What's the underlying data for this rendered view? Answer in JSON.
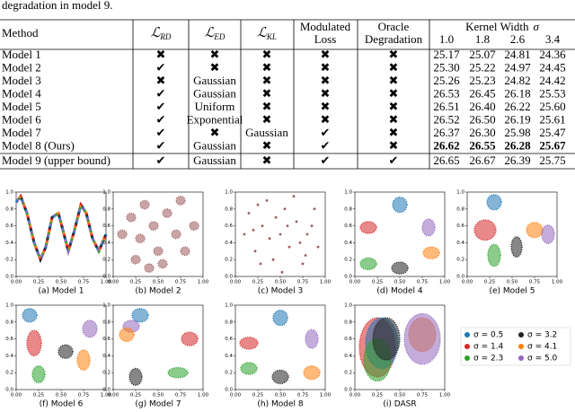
{
  "header_text": "degradation in model 9.",
  "table": {
    "columns": [
      [
        "Method"
      ],
      {
        "symbol": "ℒ",
        "sub": "RD"
      },
      {
        "symbol": "ℒ",
        "sub": "ED"
      },
      {
        "symbol": "ℒ",
        "sub": "KL"
      },
      [
        "Modulated",
        "Loss"
      ],
      [
        "Oracle",
        "Degradation"
      ]
    ],
    "kernel_header": {
      "text": "Kernel Width",
      "symbol": "σ"
    },
    "widths": [
      "1.0",
      "1.8",
      "2.6",
      "3.4"
    ],
    "bold_row": 7,
    "rows": [
      [
        "Model 1",
        "✖",
        "✖",
        "✖",
        "✖",
        "✖",
        "25.17",
        "25.07",
        "24.81",
        "24.36"
      ],
      [
        "Model 2",
        "✔",
        "✖",
        "✖",
        "✖",
        "✖",
        "25.30",
        "25.22",
        "24.97",
        "24.45"
      ],
      [
        "Model 3",
        "✖",
        "Gaussian",
        "✖",
        "✖",
        "✖",
        "25.26",
        "25.23",
        "24.82",
        "24.42"
      ],
      [
        "Model 4",
        "✔",
        "Gaussian",
        "✖",
        "✖",
        "✖",
        "26.53",
        "26.45",
        "26.18",
        "25.53"
      ],
      [
        "Model 5",
        "✔",
        "Uniform",
        "✖",
        "✖",
        "✖",
        "26.51",
        "26.40",
        "26.22",
        "25.60"
      ],
      [
        "Model 6",
        "✔",
        "Exponential",
        "✖",
        "✖",
        "✖",
        "26.52",
        "26.50",
        "26.19",
        "25.61"
      ],
      [
        "Model 7",
        "✔",
        "✖",
        "Gaussian",
        "✔",
        "✖",
        "26.37",
        "26.30",
        "25.98",
        "25.47"
      ],
      [
        "Model 8 (Ours)",
        "✔",
        "Gaussian",
        "✖",
        "✔",
        "✖",
        "26.62",
        "26.55",
        "26.28",
        "25.67"
      ],
      [
        "Model 9 (upper bound)",
        "✔",
        "Gaussian",
        "✖",
        "✔",
        "✔",
        "26.65",
        "26.67",
        "26.39",
        "25.75"
      ]
    ]
  },
  "chart_data": {
    "type": "scatter",
    "xlim": [
      0,
      1
    ],
    "ylim": [
      0,
      1
    ],
    "xticks": [
      {
        "value": 0,
        "label": "0.00"
      },
      {
        "value": 0.25,
        "label": "0.25"
      },
      {
        "value": 0.5,
        "label": "0.50"
      },
      {
        "value": 0.75,
        "label": "0.75"
      },
      {
        "value": 1,
        "label": "1.00"
      }
    ],
    "yticks": [
      {
        "value": 0,
        "label": "0.0"
      },
      {
        "value": 0.2,
        "label": "0.2"
      },
      {
        "value": 0.4,
        "label": "0.4"
      },
      {
        "value": 0.6,
        "label": "0.6"
      },
      {
        "value": 0.8,
        "label": "0.8"
      },
      {
        "value": 1,
        "label": "1.0"
      }
    ],
    "legend": [
      {
        "name": "σ = 0.5",
        "color": "#1f77b4"
      },
      {
        "name": "σ = 3.2",
        "color": "#222222"
      },
      {
        "name": "σ = 1.4",
        "color": "#d62728"
      },
      {
        "name": "σ = 4.1",
        "color": "#ff7f0e"
      },
      {
        "name": "σ = 2.3",
        "color": "#2ca02c"
      },
      {
        "name": "σ = 5.0",
        "color": "#9467bd"
      }
    ],
    "panels": [
      {
        "caption": "(a) Model 1",
        "curve": {
          "color": "#9467bd",
          "x": [
            0,
            0.05,
            0.12,
            0.2,
            0.27,
            0.33,
            0.4,
            0.47,
            0.52,
            0.58,
            0.65,
            0.72,
            0.78,
            0.85,
            0.92,
            1
          ],
          "y": [
            0.88,
            0.95,
            0.75,
            0.4,
            0.2,
            0.35,
            0.7,
            0.75,
            0.55,
            0.3,
            0.55,
            0.85,
            0.75,
            0.45,
            0.3,
            0.5
          ]
        }
      },
      {
        "caption": "(b) Model 2",
        "clusters": [
          {
            "color": "#9c5a5a",
            "x": 0.1,
            "y": 0.5,
            "rx": 0.05,
            "ry": 0.05
          },
          {
            "color": "#9c5a5a",
            "x": 0.2,
            "y": 0.7,
            "rx": 0.05,
            "ry": 0.05
          },
          {
            "color": "#9c5a5a",
            "x": 0.3,
            "y": 0.45,
            "rx": 0.05,
            "ry": 0.05
          },
          {
            "color": "#9c5a5a",
            "x": 0.35,
            "y": 0.85,
            "rx": 0.05,
            "ry": 0.05
          },
          {
            "color": "#9c5a5a",
            "x": 0.45,
            "y": 0.6,
            "rx": 0.05,
            "ry": 0.05
          },
          {
            "color": "#9c5a5a",
            "x": 0.5,
            "y": 0.3,
            "rx": 0.05,
            "ry": 0.05
          },
          {
            "color": "#9c5a5a",
            "x": 0.55,
            "y": 0.15,
            "rx": 0.05,
            "ry": 0.05
          },
          {
            "color": "#9c5a5a",
            "x": 0.6,
            "y": 0.75,
            "rx": 0.05,
            "ry": 0.05
          },
          {
            "color": "#9c5a5a",
            "x": 0.7,
            "y": 0.5,
            "rx": 0.05,
            "ry": 0.05
          },
          {
            "color": "#9c5a5a",
            "x": 0.75,
            "y": 0.9,
            "rx": 0.05,
            "ry": 0.05
          },
          {
            "color": "#9c5a5a",
            "x": 0.8,
            "y": 0.3,
            "rx": 0.05,
            "ry": 0.05
          },
          {
            "color": "#9c5a5a",
            "x": 0.9,
            "y": 0.6,
            "rx": 0.05,
            "ry": 0.05
          },
          {
            "color": "#9c5a5a",
            "x": 0.25,
            "y": 0.2,
            "rx": 0.05,
            "ry": 0.05
          },
          {
            "color": "#9c5a5a",
            "x": 0.4,
            "y": 0.1,
            "rx": 0.05,
            "ry": 0.05
          }
        ]
      },
      {
        "caption": "(c) Model 3",
        "points": {
          "color": "#9c5a5a",
          "x": [
            0.1,
            0.15,
            0.22,
            0.3,
            0.35,
            0.42,
            0.5,
            0.55,
            0.6,
            0.68,
            0.75,
            0.8,
            0.88,
            0.92,
            0.2,
            0.28,
            0.45,
            0.52,
            0.65,
            0.72,
            0.85,
            0.38,
            0.58,
            0.25,
            0.78
          ],
          "y": [
            0.5,
            0.75,
            0.3,
            0.6,
            0.9,
            0.2,
            0.5,
            0.8,
            0.35,
            0.65,
            0.15,
            0.5,
            0.8,
            0.35,
            0.55,
            0.15,
            0.7,
            0.05,
            0.95,
            0.4,
            0.6,
            0.45,
            0.6,
            0.85,
            0.25
          ]
        }
      },
      {
        "caption": "(d) Model 4",
        "clusters": [
          {
            "color": "#1f77b4",
            "x": 0.5,
            "y": 0.85,
            "rx": 0.08,
            "ry": 0.09
          },
          {
            "color": "#d62728",
            "x": 0.15,
            "y": 0.58,
            "rx": 0.09,
            "ry": 0.07
          },
          {
            "color": "#9467bd",
            "x": 0.82,
            "y": 0.58,
            "rx": 0.07,
            "ry": 0.1
          },
          {
            "color": "#2ca02c",
            "x": 0.15,
            "y": 0.15,
            "rx": 0.09,
            "ry": 0.07
          },
          {
            "color": "#222222",
            "x": 0.5,
            "y": 0.1,
            "rx": 0.09,
            "ry": 0.07
          },
          {
            "color": "#ff7f0e",
            "x": 0.85,
            "y": 0.28,
            "rx": 0.09,
            "ry": 0.07
          }
        ]
      },
      {
        "caption": "(e) Model 5",
        "clusters": [
          {
            "color": "#1f77b4",
            "x": 0.3,
            "y": 0.88,
            "rx": 0.08,
            "ry": 0.09
          },
          {
            "color": "#d62728",
            "x": 0.2,
            "y": 0.55,
            "rx": 0.12,
            "ry": 0.12
          },
          {
            "color": "#2ca02c",
            "x": 0.3,
            "y": 0.25,
            "rx": 0.07,
            "ry": 0.13
          },
          {
            "color": "#222222",
            "x": 0.55,
            "y": 0.35,
            "rx": 0.06,
            "ry": 0.12
          },
          {
            "color": "#ff7f0e",
            "x": 0.75,
            "y": 0.55,
            "rx": 0.09,
            "ry": 0.09
          },
          {
            "color": "#9467bd",
            "x": 0.9,
            "y": 0.5,
            "rx": 0.07,
            "ry": 0.11
          }
        ]
      },
      {
        "caption": "(f) Model 6",
        "clusters": [
          {
            "color": "#1f77b4",
            "x": 0.15,
            "y": 0.88,
            "rx": 0.08,
            "ry": 0.08
          },
          {
            "color": "#d62728",
            "x": 0.2,
            "y": 0.55,
            "rx": 0.08,
            "ry": 0.15
          },
          {
            "color": "#2ca02c",
            "x": 0.25,
            "y": 0.18,
            "rx": 0.07,
            "ry": 0.1
          },
          {
            "color": "#222222",
            "x": 0.55,
            "y": 0.45,
            "rx": 0.08,
            "ry": 0.08
          },
          {
            "color": "#ff7f0e",
            "x": 0.75,
            "y": 0.35,
            "rx": 0.07,
            "ry": 0.12
          },
          {
            "color": "#9467bd",
            "x": 0.82,
            "y": 0.72,
            "rx": 0.08,
            "ry": 0.1
          }
        ]
      },
      {
        "caption": "(g) Model 7",
        "clusters": [
          {
            "color": "#1f77b4",
            "x": 0.3,
            "y": 0.88,
            "rx": 0.09,
            "ry": 0.08
          },
          {
            "color": "#9467bd",
            "x": 0.2,
            "y": 0.75,
            "rx": 0.09,
            "ry": 0.07
          },
          {
            "color": "#ff7f0e",
            "x": 0.15,
            "y": 0.65,
            "rx": 0.08,
            "ry": 0.08
          },
          {
            "color": "#d62728",
            "x": 0.85,
            "y": 0.6,
            "rx": 0.09,
            "ry": 0.08
          },
          {
            "color": "#222222",
            "x": 0.25,
            "y": 0.15,
            "rx": 0.07,
            "ry": 0.1
          },
          {
            "color": "#2ca02c",
            "x": 0.72,
            "y": 0.2,
            "rx": 0.11,
            "ry": 0.06
          }
        ]
      },
      {
        "caption": "(h) Model 8",
        "clusters": [
          {
            "color": "#1f77b4",
            "x": 0.5,
            "y": 0.85,
            "rx": 0.08,
            "ry": 0.09
          },
          {
            "color": "#d62728",
            "x": 0.15,
            "y": 0.55,
            "rx": 0.1,
            "ry": 0.07
          },
          {
            "color": "#9467bd",
            "x": 0.85,
            "y": 0.6,
            "rx": 0.07,
            "ry": 0.11
          },
          {
            "color": "#2ca02c",
            "x": 0.15,
            "y": 0.25,
            "rx": 0.09,
            "ry": 0.07
          },
          {
            "color": "#222222",
            "x": 0.5,
            "y": 0.15,
            "rx": 0.09,
            "ry": 0.08
          },
          {
            "color": "#ff7f0e",
            "x": 0.85,
            "y": 0.2,
            "rx": 0.09,
            "ry": 0.08
          }
        ]
      },
      {
        "caption": "(i) DASR",
        "clusters": [
          {
            "color": "#d62728",
            "x": 0.25,
            "y": 0.5,
            "rx": 0.2,
            "ry": 0.35
          },
          {
            "color": "#1f77b4",
            "x": 0.3,
            "y": 0.55,
            "rx": 0.18,
            "ry": 0.3
          },
          {
            "color": "#2ca02c",
            "x": 0.25,
            "y": 0.35,
            "rx": 0.15,
            "ry": 0.25
          },
          {
            "color": "#222222",
            "x": 0.35,
            "y": 0.6,
            "rx": 0.15,
            "ry": 0.25
          },
          {
            "color": "#ff7f0e",
            "x": 0.75,
            "y": 0.65,
            "rx": 0.15,
            "ry": 0.2
          },
          {
            "color": "#9467bd",
            "x": 0.75,
            "y": 0.6,
            "rx": 0.2,
            "ry": 0.3
          }
        ]
      }
    ]
  }
}
